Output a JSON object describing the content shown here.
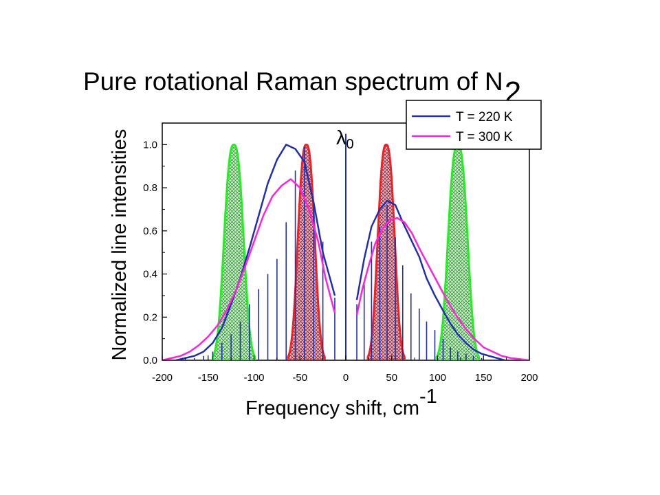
{
  "chart_data": {
    "type": "line",
    "title": "Pure rotational Raman spectrum of N",
    "title_subscript": "2",
    "xlabel": "Frequency shift, cm",
    "xlabel_superscript": "-1",
    "ylabel": "Normalized line intensities",
    "xlim": [
      -200,
      200
    ],
    "ylim": [
      0,
      1.1
    ],
    "x_ticks": [
      -200,
      -150,
      -100,
      -50,
      0,
      50,
      100,
      150,
      200
    ],
    "x_tick_labels": [
      "-200",
      "-150",
      "-100",
      "-50",
      "0",
      "50",
      "100",
      "150",
      "200"
    ],
    "y_ticks": [
      0.0,
      0.2,
      0.4,
      0.6,
      0.8,
      1.0
    ],
    "y_tick_labels": [
      "0.0",
      "0.2",
      "0.4",
      "0.6",
      "0.8",
      "1.0"
    ],
    "legend_position": "top-right",
    "annotation": {
      "text": "λ",
      "subscript": "0",
      "x": 0
    },
    "series": [
      {
        "name": "T = 220 K",
        "color": "#1f2fb0",
        "x": [
          -185,
          -175,
          -165,
          -155,
          -145,
          -135,
          -125,
          -115,
          -105,
          -95,
          -85,
          -75,
          -65,
          -55,
          -45,
          -35,
          -25,
          -12,
          12,
          20,
          28,
          37,
          45,
          54,
          62,
          71,
          80,
          88,
          97,
          106,
          114,
          122,
          131,
          139,
          148,
          156,
          165,
          173
        ],
        "y": [
          0.0,
          0.01,
          0.02,
          0.04,
          0.08,
          0.15,
          0.26,
          0.38,
          0.52,
          0.67,
          0.82,
          0.93,
          1.0,
          0.98,
          0.92,
          0.73,
          0.5,
          0.3,
          0.28,
          0.47,
          0.62,
          0.7,
          0.74,
          0.72,
          0.64,
          0.56,
          0.48,
          0.38,
          0.3,
          0.23,
          0.17,
          0.12,
          0.08,
          0.05,
          0.03,
          0.02,
          0.01,
          0.0
        ]
      },
      {
        "name": "T = 300 K",
        "color": "#ff22dd",
        "x": [
          -200,
          -190,
          -180,
          -170,
          -160,
          -150,
          -140,
          -130,
          -120,
          -110,
          -100,
          -90,
          -80,
          -70,
          -60,
          -50,
          -40,
          -30,
          -22,
          -12,
          12,
          18,
          25,
          32,
          40,
          48,
          56,
          64,
          72,
          80,
          90,
          100,
          110,
          120,
          130,
          140,
          150,
          160,
          170,
          180,
          190,
          200
        ],
        "y": [
          0.0,
          0.01,
          0.02,
          0.04,
          0.07,
          0.11,
          0.16,
          0.23,
          0.32,
          0.43,
          0.55,
          0.67,
          0.76,
          0.81,
          0.84,
          0.8,
          0.7,
          0.55,
          0.38,
          0.22,
          0.21,
          0.33,
          0.44,
          0.54,
          0.61,
          0.65,
          0.66,
          0.64,
          0.59,
          0.52,
          0.44,
          0.36,
          0.28,
          0.21,
          0.15,
          0.1,
          0.06,
          0.04,
          0.02,
          0.01,
          0.005,
          0.0
        ]
      }
    ],
    "lines": {
      "color": "#1f2fb0",
      "x": [
        -165,
        -155,
        -145,
        -135,
        -125,
        -115,
        -105,
        -95,
        -85,
        -75,
        -65,
        -55,
        -45,
        -35,
        -25,
        -12,
        0,
        12,
        20,
        28,
        37,
        45,
        54,
        62,
        71,
        80,
        88,
        97,
        106,
        114,
        122,
        131,
        139,
        148
      ],
      "y": [
        0.01,
        0.02,
        0.04,
        0.08,
        0.12,
        0.18,
        0.26,
        0.33,
        0.4,
        0.47,
        0.64,
        0.88,
        0.99,
        0.73,
        0.55,
        0.29,
        1.05,
        0.26,
        0.36,
        0.55,
        0.62,
        0.72,
        0.57,
        0.44,
        0.31,
        0.24,
        0.18,
        0.14,
        0.1,
        0.06,
        0.04,
        0.03,
        0.02,
        0.01
      ]
    },
    "filters": [
      {
        "color": "#22ee22",
        "fill": "#88dd88",
        "center": -122,
        "half_width": 23,
        "peak": 1.0
      },
      {
        "color": "#ee2222",
        "fill": "#c87a7a",
        "center": -43,
        "half_width": 20,
        "peak": 1.0
      },
      {
        "color": "#ee2222",
        "fill": "#c87a7a",
        "center": 44,
        "half_width": 20,
        "peak": 1.0
      },
      {
        "color": "#22ee22",
        "fill": "#88dd88",
        "center": 122,
        "half_width": 23,
        "peak": 1.0
      }
    ]
  }
}
